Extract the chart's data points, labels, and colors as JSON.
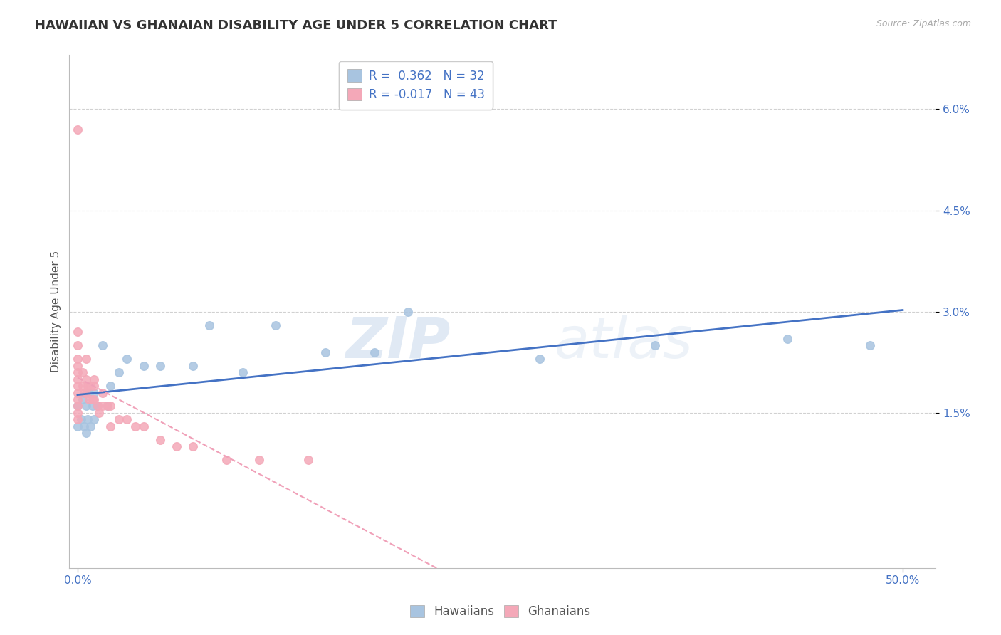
{
  "title": "HAWAIIAN VS GHANAIAN DISABILITY AGE UNDER 5 CORRELATION CHART",
  "source_text": "Source: ZipAtlas.com",
  "ylabel": "Disability Age Under 5",
  "xticklabels_ends": [
    "0.0%",
    "50.0%"
  ],
  "xticks_ends": [
    0.0,
    0.5
  ],
  "yticklabels": [
    "6.0%",
    "4.5%",
    "3.0%",
    "1.5%"
  ],
  "yticks": [
    0.06,
    0.045,
    0.03,
    0.015
  ],
  "xlim": [
    -0.005,
    0.52
  ],
  "ylim": [
    -0.008,
    0.068
  ],
  "legend_r1": "R =  0.362   N = 32",
  "legend_r2": "R = -0.017   N = 43",
  "hawaiian_color": "#a8c4e0",
  "ghanaian_color": "#f4a8b8",
  "hawaiian_line_color": "#4472c4",
  "ghanaian_line_color": "#f0a0b8",
  "watermark_zip": "ZIP",
  "watermark_atlas": "atlas",
  "hawaiian_x": [
    0.0,
    0.0,
    0.002,
    0.003,
    0.004,
    0.005,
    0.005,
    0.006,
    0.007,
    0.008,
    0.009,
    0.01,
    0.01,
    0.012,
    0.015,
    0.018,
    0.02,
    0.025,
    0.03,
    0.04,
    0.05,
    0.07,
    0.08,
    0.1,
    0.12,
    0.15,
    0.18,
    0.2,
    0.28,
    0.35,
    0.43,
    0.48
  ],
  "hawaiian_y": [
    0.016,
    0.013,
    0.014,
    0.017,
    0.013,
    0.012,
    0.016,
    0.014,
    0.018,
    0.013,
    0.016,
    0.014,
    0.018,
    0.016,
    0.025,
    0.016,
    0.019,
    0.021,
    0.023,
    0.022,
    0.022,
    0.022,
    0.028,
    0.021,
    0.028,
    0.024,
    0.024,
    0.03,
    0.023,
    0.025,
    0.026,
    0.025
  ],
  "ghanaian_x": [
    0.0,
    0.0,
    0.0,
    0.0,
    0.0,
    0.0,
    0.0,
    0.0,
    0.0,
    0.0,
    0.0,
    0.0,
    0.0,
    0.003,
    0.003,
    0.004,
    0.005,
    0.005,
    0.005,
    0.006,
    0.007,
    0.008,
    0.009,
    0.01,
    0.01,
    0.01,
    0.012,
    0.013,
    0.015,
    0.015,
    0.018,
    0.02,
    0.02,
    0.025,
    0.03,
    0.035,
    0.04,
    0.05,
    0.06,
    0.07,
    0.09,
    0.11,
    0.14
  ],
  "ghanaian_y": [
    0.057,
    0.027,
    0.025,
    0.023,
    0.022,
    0.021,
    0.02,
    0.019,
    0.018,
    0.017,
    0.016,
    0.015,
    0.014,
    0.021,
    0.019,
    0.018,
    0.023,
    0.02,
    0.018,
    0.019,
    0.017,
    0.019,
    0.017,
    0.02,
    0.019,
    0.017,
    0.016,
    0.015,
    0.018,
    0.016,
    0.016,
    0.016,
    0.013,
    0.014,
    0.014,
    0.013,
    0.013,
    0.011,
    0.01,
    0.01,
    0.008,
    0.008,
    0.008
  ],
  "background_color": "#ffffff",
  "grid_color": "#cccccc",
  "title_fontsize": 13,
  "axis_label_fontsize": 11,
  "tick_fontsize": 11,
  "legend_fontsize": 12
}
